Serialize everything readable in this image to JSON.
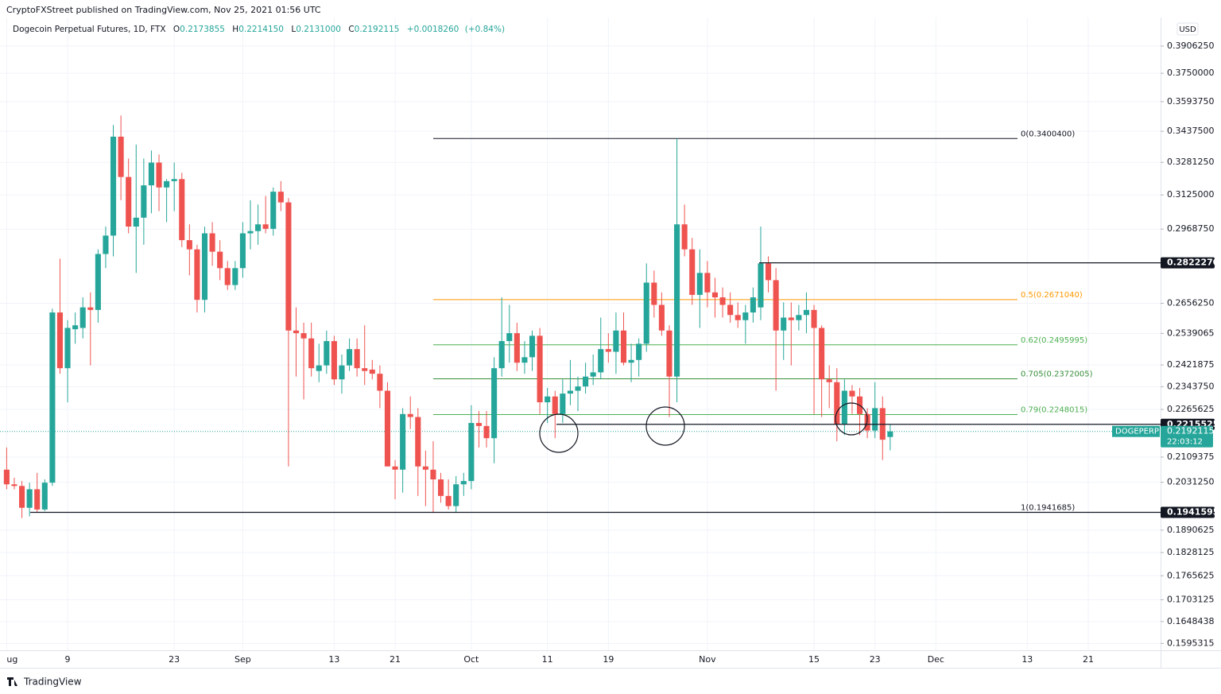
{
  "chart_data": {
    "type": "candlestick",
    "publisher": "CryptoFXStreet published on TradingView.com, Nov 25, 2021 01:56 UTC",
    "title": "Dogecoin Perpetual Futures, 1D, FTX",
    "legend_ohlc": [
      {
        "key": "O",
        "value": 0.2173855,
        "label": "0.2173855"
      },
      {
        "key": "H",
        "value": 0.221415,
        "label": "0.2214150"
      },
      {
        "key": "L",
        "value": 0.2131,
        "label": "0.2131000"
      },
      {
        "key": "C",
        "value": 0.2192115,
        "label": "0.2192115"
      }
    ],
    "change": {
      "value": 0.001826,
      "label": "+0.0018260"
    },
    "change_pct": {
      "value": 0.84,
      "label": "(+0.84%)"
    },
    "currency": "USD",
    "brand": "TradingView",
    "up_color": "#26a69a",
    "down_color": "#ef5350",
    "log_scale": true,
    "grid": true,
    "categories": [
      "ug",
      null,
      null,
      null,
      null,
      null,
      null,
      null,
      "9",
      null,
      null,
      null,
      null,
      null,
      null,
      null,
      null,
      null,
      null,
      null,
      null,
      null,
      "23",
      null,
      null,
      null,
      null,
      null,
      null,
      null,
      null,
      "Sep",
      null,
      null,
      null,
      null,
      null,
      null,
      null,
      null,
      null,
      null,
      null,
      "13",
      null,
      null,
      null,
      null,
      null,
      null,
      null,
      "21",
      null,
      null,
      null,
      null,
      null,
      null,
      null,
      null,
      null,
      "Oct",
      null,
      null,
      null,
      null,
      null,
      null,
      null,
      null,
      null,
      "11",
      null,
      null,
      null,
      null,
      null,
      null,
      null,
      "19",
      null,
      null,
      null,
      null,
      null,
      null,
      null,
      null,
      null,
      null,
      null,
      null,
      "Nov",
      null,
      null,
      null,
      null,
      null,
      null,
      null,
      null,
      null,
      null,
      null,
      null,
      null,
      "15",
      null,
      null,
      null,
      null,
      null,
      null,
      null,
      "23",
      null,
      null,
      null,
      null,
      null,
      null,
      null,
      "Dec",
      null,
      null,
      null,
      null,
      null,
      null,
      null,
      null,
      null,
      null,
      null,
      "13",
      null,
      null,
      null,
      null,
      null,
      null,
      null,
      "21",
      null,
      null,
      null,
      null,
      null,
      null,
      null,
      null,
      null
    ],
    "open": [
      0.207,
      0.2025,
      0.202,
      0.1955,
      0.201,
      0.195,
      0.203,
      0.262,
      0.241,
      0.2555,
      0.256,
      0.264,
      0.263,
      0.286,
      0.294,
      0.341,
      0.321,
      0.298,
      0.302,
      0.317,
      0.328,
      0.316,
      0.319,
      0.32,
      0.292,
      0.288,
      0.267,
      0.295,
      0.287,
      0.28,
      0.273,
      0.28,
      0.295,
      0.296,
      0.299,
      0.297,
      0.314,
      0.309,
      0.255,
      0.254,
      0.252,
      0.24,
      0.242,
      0.251,
      0.237,
      0.242,
      0.248,
      0.241,
      0.2405,
      0.239,
      0.233,
      0.208,
      0.207,
      0.225,
      0.224,
      0.208,
      0.207,
      0.204,
      0.199,
      0.196,
      0.2025,
      0.2035,
      0.222,
      0.221,
      0.217,
      0.241,
      0.251,
      0.254,
      0.243,
      0.245,
      0.253,
      0.229,
      0.231,
      0.225,
      0.232,
      0.233,
      0.2345,
      0.238,
      0.2395,
      0.248,
      0.247,
      0.255,
      0.243,
      0.244,
      0.25,
      0.274,
      0.265,
      0.255,
      0.238,
      0.299,
      0.288,
      0.269,
      0.278,
      0.27,
      0.268,
      0.265,
      0.261,
      0.259,
      0.262,
      0.264,
      0.282,
      0.275,
      0.255,
      0.26,
      0.259,
      0.261,
      0.263,
      0.256,
      0.237,
      0.236,
      0.2215,
      0.233,
      0.231,
      0.225,
      0.2195,
      0.227,
      0.2173855,
      null,
      null,
      null,
      null,
      null,
      null,
      null,
      null,
      null,
      null,
      null,
      null,
      null,
      null,
      null,
      null,
      null,
      null,
      null,
      null,
      null,
      null,
      null,
      null,
      null,
      null,
      null,
      null,
      null,
      null,
      null,
      null,
      null,
      null,
      null
    ],
    "high": [
      0.214,
      0.2045,
      0.2035,
      0.203,
      0.206,
      0.204,
      0.2635,
      0.284,
      0.259,
      0.262,
      0.268,
      0.27,
      0.288,
      0.298,
      0.347,
      0.352,
      0.33,
      0.337,
      0.33,
      0.334,
      0.332,
      0.32,
      0.328,
      0.323,
      0.299,
      0.29,
      0.298,
      0.3,
      0.292,
      0.283,
      0.283,
      0.3,
      0.31,
      0.308,
      0.312,
      0.316,
      0.319,
      0.311,
      0.264,
      0.258,
      0.258,
      0.25,
      0.255,
      0.253,
      0.246,
      0.252,
      0.252,
      0.257,
      0.244,
      0.242,
      0.236,
      0.21,
      0.227,
      0.231,
      0.227,
      0.213,
      0.216,
      0.206,
      0.204,
      0.205,
      0.206,
      0.228,
      0.226,
      0.226,
      0.245,
      0.268,
      0.265,
      0.258,
      0.251,
      0.255,
      0.256,
      0.234,
      0.233,
      0.237,
      0.244,
      0.238,
      0.243,
      0.246,
      0.26,
      0.254,
      0.262,
      0.262,
      0.25,
      0.252,
      0.282,
      0.279,
      0.27,
      0.257,
      0.34,
      0.308,
      0.293,
      0.288,
      0.283,
      0.276,
      0.272,
      0.27,
      0.266,
      0.265,
      0.272,
      0.298,
      0.285,
      0.28,
      0.266,
      0.266,
      0.265,
      0.27,
      0.265,
      0.257,
      0.242,
      0.241,
      0.237,
      0.235,
      0.234,
      0.227,
      0.236,
      0.231,
      0.221415,
      null,
      null,
      null,
      null,
      null,
      null,
      null,
      null,
      null,
      null,
      null,
      null,
      null,
      null,
      null,
      null,
      null,
      null,
      null,
      null,
      null,
      null,
      null,
      null,
      null,
      null,
      null,
      null,
      null,
      null,
      null,
      null,
      null,
      null,
      null
    ],
    "low": [
      0.201,
      0.201,
      0.1925,
      0.193,
      0.1941,
      0.1945,
      0.202,
      0.239,
      0.229,
      0.25,
      0.252,
      0.242,
      0.258,
      0.28,
      0.285,
      0.31,
      0.295,
      0.278,
      0.29,
      0.304,
      0.305,
      0.3,
      0.305,
      0.289,
      0.277,
      0.262,
      0.262,
      0.281,
      0.275,
      0.271,
      0.271,
      0.276,
      0.288,
      0.29,
      0.295,
      0.294,
      0.305,
      0.208,
      0.238,
      0.23,
      0.238,
      0.236,
      0.239,
      0.235,
      0.232,
      0.24,
      0.238,
      0.235,
      0.237,
      0.227,
      0.208,
      0.198,
      0.2,
      0.22,
      0.199,
      0.196,
      0.194,
      0.197,
      0.195,
      0.194,
      0.199,
      0.201,
      0.214,
      0.214,
      0.209,
      0.238,
      0.243,
      0.24,
      0.239,
      0.24,
      0.225,
      0.222,
      0.217,
      0.222,
      0.228,
      0.226,
      0.232,
      0.235,
      0.237,
      0.243,
      0.239,
      0.242,
      0.236,
      0.238,
      0.247,
      0.26,
      0.253,
      0.224,
      0.229,
      0.285,
      0.265,
      0.256,
      0.264,
      0.26,
      0.26,
      0.258,
      0.256,
      0.25,
      0.258,
      0.259,
      0.27,
      0.233,
      0.244,
      0.242,
      0.255,
      0.254,
      0.225,
      0.224,
      0.227,
      0.216,
      0.218,
      0.225,
      0.218,
      0.217,
      0.217,
      0.21,
      0.2131,
      null,
      null,
      null,
      null,
      null,
      null,
      null,
      null,
      null,
      null,
      null,
      null,
      null,
      null,
      null,
      null,
      null,
      null,
      null,
      null,
      null,
      null,
      null,
      null,
      null,
      null,
      null,
      null,
      null,
      null,
      null,
      null,
      null,
      null,
      null
    ],
    "close": [
      0.2025,
      0.202,
      0.1955,
      0.201,
      0.195,
      0.203,
      0.262,
      0.241,
      0.256,
      0.257,
      0.264,
      0.263,
      0.286,
      0.294,
      0.341,
      0.321,
      0.298,
      0.302,
      0.317,
      0.328,
      0.316,
      0.319,
      0.32,
      0.292,
      0.288,
      0.267,
      0.295,
      0.287,
      0.28,
      0.273,
      0.28,
      0.295,
      0.296,
      0.299,
      0.297,
      0.314,
      0.309,
      0.255,
      0.254,
      0.252,
      0.241,
      0.242,
      0.251,
      0.237,
      0.242,
      0.248,
      0.241,
      0.24,
      0.239,
      0.233,
      0.208,
      0.207,
      0.225,
      0.224,
      0.208,
      0.207,
      0.204,
      0.199,
      0.196,
      0.2025,
      0.2035,
      0.222,
      0.221,
      0.217,
      0.241,
      0.251,
      0.254,
      0.243,
      0.245,
      0.253,
      0.229,
      0.231,
      0.225,
      0.232,
      0.233,
      0.2345,
      0.238,
      0.2395,
      0.248,
      0.247,
      0.255,
      0.243,
      0.244,
      0.25,
      0.274,
      0.265,
      0.255,
      0.238,
      0.299,
      0.288,
      0.269,
      0.278,
      0.27,
      0.268,
      0.265,
      0.261,
      0.259,
      0.262,
      0.268,
      0.282,
      0.275,
      0.255,
      0.26,
      0.259,
      0.261,
      0.263,
      0.256,
      0.237,
      0.236,
      0.2215,
      0.233,
      0.231,
      0.225,
      0.2195,
      0.227,
      0.2165,
      0.2192115,
      null,
      null,
      null,
      null,
      null,
      null,
      null,
      null,
      null,
      null,
      null,
      null,
      null,
      null,
      null,
      null,
      null,
      null,
      null,
      null,
      null,
      null,
      null,
      null,
      null,
      null,
      null,
      null,
      null,
      null,
      null,
      null,
      null,
      null,
      null
    ],
    "ylim": [
      0.1579,
      0.4077
    ],
    "yticks": [
      {
        "value": 0.390625,
        "label": "0.3906250"
      },
      {
        "value": 0.375,
        "label": "0.3750000"
      },
      {
        "value": 0.359375,
        "label": "0.3593750"
      },
      {
        "value": 0.34375,
        "label": "0.3437500"
      },
      {
        "value": 0.328125,
        "label": "0.3281250"
      },
      {
        "value": 0.3125,
        "label": "0.3125000"
      },
      {
        "value": 0.296875,
        "label": "0.2968750"
      },
      {
        "value": 0.265625,
        "label": "0.2656250"
      },
      {
        "value": 0.2539065,
        "label": "0.2539065"
      },
      {
        "value": 0.2421875,
        "label": "0.2421875"
      },
      {
        "value": 0.234375,
        "label": "0.2343750"
      },
      {
        "value": 0.2265625,
        "label": "0.2265625"
      },
      {
        "value": 0.2109375,
        "label": "0.2109375"
      },
      {
        "value": 0.203125,
        "label": "0.2031250"
      },
      {
        "value": 0.1890625,
        "label": "0.1890625"
      },
      {
        "value": 0.1828125,
        "label": "0.1828125"
      },
      {
        "value": 0.1765625,
        "label": "0.1765625"
      },
      {
        "value": 0.1703125,
        "label": "0.1703125"
      },
      {
        "value": 0.1648438,
        "label": "0.1648438"
      },
      {
        "value": 0.1595315,
        "label": "0.1595315"
      }
    ],
    "fib_levels": [
      {
        "value": 0.34004,
        "label": "0(0.3400400)",
        "color": "#131722"
      },
      {
        "value": 0.267104,
        "label": "0.5(0.2671040)",
        "color": "#ff9800"
      },
      {
        "value": 0.2495995,
        "label": "0.62(0.2495995)",
        "color": "#4caf50"
      },
      {
        "value": 0.2372005,
        "label": "0.705(0.2372005)",
        "color": "#388e3c"
      },
      {
        "value": 0.2248015,
        "label": "0.79(0.2248015)",
        "color": "#4caf50"
      },
      {
        "value": 0.1941685,
        "label": "1(0.1941685)",
        "color": "#131722"
      }
    ],
    "price_lines": [
      {
        "value": 0.282227,
        "label": "0.2822270"
      },
      {
        "value": 0.2215525,
        "label": "0.2215525"
      },
      {
        "value": 0.1941595,
        "label": "0.1941595"
      }
    ],
    "last_price": {
      "name": "DOGEPERP",
      "value": 0.2192115,
      "label": "0.2192115",
      "countdown": "22:03:12",
      "color": "#26a69a"
    }
  }
}
